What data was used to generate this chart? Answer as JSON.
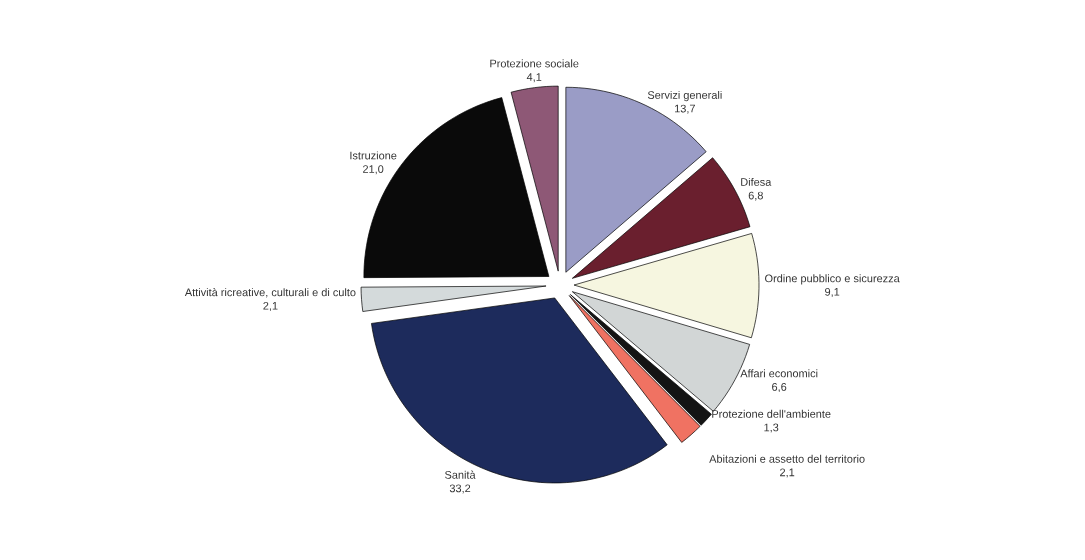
{
  "chart_data": {
    "type": "pie",
    "categories": [
      "Servizi generali",
      "Difesa",
      "Ordine pubblico e sicurezza",
      "Affari economici",
      "Protezione dell'ambiente",
      "Abitazioni e assetto del territorio",
      "Sanità",
      "Attività ricreative, culturali e di culto",
      "Istruzione",
      "Protezione sociale"
    ],
    "values": [
      13.7,
      6.8,
      9.1,
      6.6,
      1.3,
      2.1,
      33.2,
      2.1,
      21.0,
      4.1
    ],
    "value_labels": [
      "13,7",
      "6,8",
      "9,1",
      "6,6",
      "1,3",
      "2,1",
      "33,2",
      "2,1",
      "21,0",
      "4,1"
    ],
    "colors": [
      "#9a9cc6",
      "#6a1f2e",
      "#f6f6e0",
      "#d2d6d6",
      "#141414",
      "#f07262",
      "#1d2b5c",
      "#d4dadb",
      "#0a0a0a",
      "#8e5876"
    ]
  }
}
